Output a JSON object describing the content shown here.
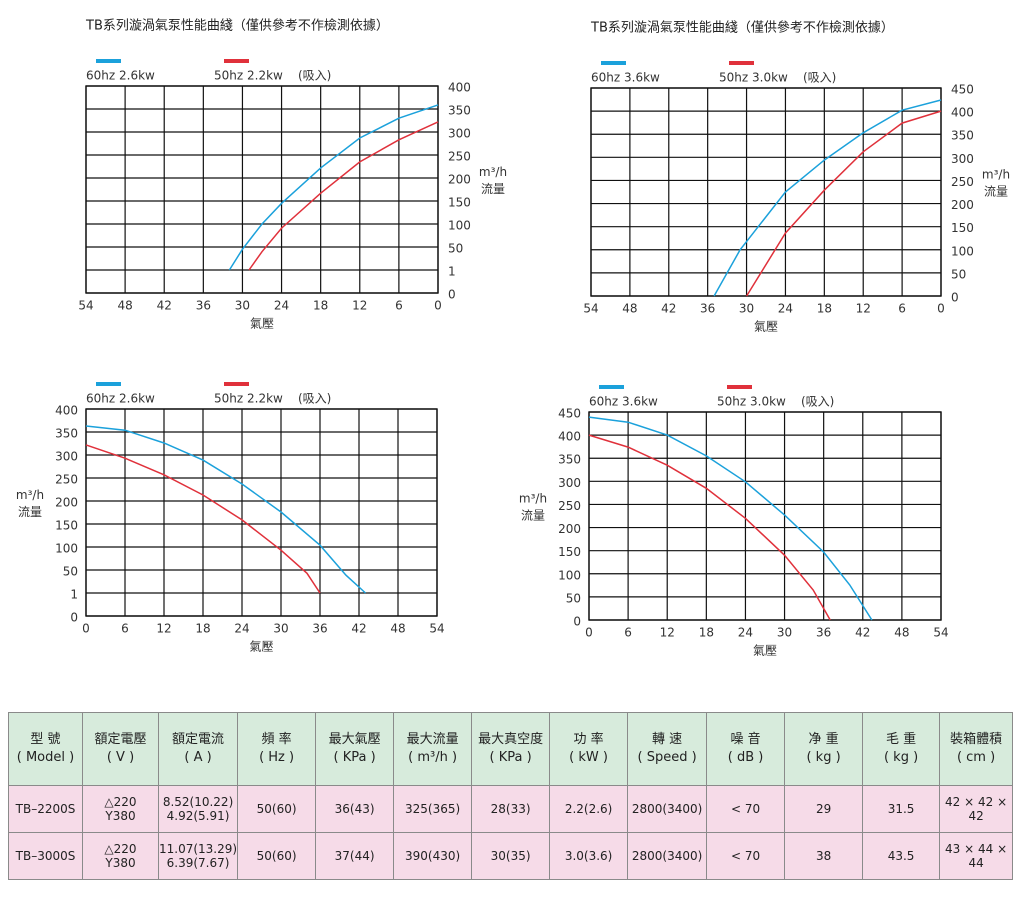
{
  "chart_data": [
    {
      "type": "line",
      "title": "TB系列漩渦氣泵性能曲綫（僅供參考不作檢測依據）",
      "y_axis_side": "right",
      "grid": true,
      "xlim": [
        54,
        0
      ],
      "xticks": [
        54,
        48,
        42,
        36,
        30,
        24,
        18,
        12,
        6,
        0
      ],
      "ylim": [
        0,
        400
      ],
      "yticks": [
        0,
        1,
        50,
        100,
        150,
        200,
        250,
        300,
        350,
        400
      ],
      "x_label": "氣壓",
      "y_label": [
        "m³/h",
        "流量"
      ],
      "annotation": "(吸入)",
      "series": [
        {
          "name": "60hz 2.6kw",
          "color": "#1ba1db",
          "x": [
            32,
            30,
            27,
            24,
            18,
            12,
            6,
            0
          ],
          "values": [
            1,
            45,
            100,
            145,
            222,
            287,
            330,
            359
          ]
        },
        {
          "name": "50hz 2.2kw",
          "color": "#e0313b",
          "x": [
            29,
            27,
            24,
            18,
            12,
            6,
            0
          ],
          "values": [
            1,
            40,
            91,
            167,
            235,
            283,
            322
          ]
        }
      ]
    },
    {
      "type": "line",
      "title": "TB系列漩渦氣泵性能曲綫（僅供參考不作檢測依據）",
      "y_axis_side": "right",
      "grid": true,
      "xlim": [
        54,
        0
      ],
      "xticks": [
        54,
        48,
        42,
        36,
        30,
        24,
        18,
        12,
        6,
        0
      ],
      "ylim": [
        0,
        450
      ],
      "yticks": [
        0,
        50,
        100,
        150,
        200,
        250,
        300,
        350,
        400,
        450
      ],
      "x_label": "氣壓",
      "y_label": [
        "m³/h",
        "流量"
      ],
      "annotation": "(吸入)",
      "series": [
        {
          "name": "60hz 3.6kw",
          "color": "#1ba1db",
          "x": [
            35,
            31,
            24,
            18,
            12,
            6,
            0
          ],
          "values": [
            0,
            100,
            225,
            294,
            353,
            402,
            424
          ]
        },
        {
          "name": "50hz 3.0kw",
          "color": "#e0313b",
          "x": [
            30,
            24,
            18,
            12,
            6,
            0
          ],
          "values": [
            0,
            136,
            229,
            312,
            374,
            400
          ]
        }
      ]
    },
    {
      "type": "line",
      "y_axis_side": "left",
      "grid": true,
      "xlim": [
        0,
        54
      ],
      "xticks": [
        0,
        6,
        12,
        18,
        24,
        30,
        36,
        42,
        48,
        54
      ],
      "ylim": [
        0,
        400
      ],
      "yticks": [
        0,
        1,
        50,
        100,
        150,
        200,
        250,
        300,
        350,
        400
      ],
      "x_label": "氣壓",
      "y_label": [
        "m³/h",
        "流量"
      ],
      "annotation": "(吸入)",
      "series": [
        {
          "name": "60hz 2.6kw",
          "color": "#1ba1db",
          "x": [
            0,
            6,
            12,
            18,
            24,
            30,
            36,
            40,
            43
          ],
          "values": [
            363,
            354,
            326,
            289,
            237,
            176,
            104,
            39,
            1
          ]
        },
        {
          "name": "50hz 2.2kw",
          "color": "#e0313b",
          "x": [
            0,
            6,
            12,
            18,
            24,
            30,
            34,
            36
          ],
          "values": [
            322,
            293,
            257,
            213,
            159,
            93,
            43,
            1
          ]
        }
      ]
    },
    {
      "type": "line",
      "y_axis_side": "left",
      "grid": true,
      "xlim": [
        0,
        54
      ],
      "xticks": [
        0,
        6,
        12,
        18,
        24,
        30,
        36,
        42,
        48,
        54
      ],
      "ylim": [
        0,
        450
      ],
      "yticks": [
        0,
        50,
        100,
        150,
        200,
        250,
        300,
        350,
        400,
        450
      ],
      "x_label": "氣壓",
      "y_label": [
        "m³/h",
        "流量"
      ],
      "annotation": "(吸入)",
      "series": [
        {
          "name": "60hz 3.6kw",
          "color": "#1ba1db",
          "x": [
            0,
            6,
            12,
            18,
            24,
            30,
            36,
            40,
            43.4
          ],
          "values": [
            439,
            428,
            400,
            355,
            299,
            227,
            147,
            76,
            0
          ]
        },
        {
          "name": "50hz 3.0kw",
          "color": "#e0313b",
          "x": [
            0,
            6,
            12,
            18,
            24,
            30,
            34.4,
            37
          ],
          "values": [
            400,
            374,
            335,
            285,
            220,
            140,
            65,
            0
          ]
        }
      ]
    }
  ],
  "table": {
    "header": [
      [
        "型 號",
        "( Model )"
      ],
      [
        "額定電壓",
        "( V )"
      ],
      [
        "額定電流",
        "( A )"
      ],
      [
        "頻 率",
        "( Hz )"
      ],
      [
        "最大氣壓",
        "( KPa )"
      ],
      [
        "最大流量",
        "( m³/h )"
      ],
      [
        "最大真空度",
        "( KPa )"
      ],
      [
        "功 率",
        "( kW )"
      ],
      [
        "轉 速",
        "( Speed )"
      ],
      [
        "噪 音",
        "( dB )"
      ],
      [
        "净 重",
        "( kg )"
      ],
      [
        "毛 重",
        "( kg )"
      ],
      [
        "裝箱體積",
        "( cm )"
      ]
    ],
    "rows": [
      [
        "TB–2200S",
        [
          "△220",
          "Y380"
        ],
        [
          "8.52(10.22)",
          "4.92(5.91)"
        ],
        "50(60)",
        "36(43)",
        "325(365)",
        "28(33)",
        "2.2(2.6)",
        "2800(3400)",
        "< 70",
        "29",
        "31.5",
        "42 × 42 × 42"
      ],
      [
        "TB–3000S",
        [
          "△220",
          "Y380"
        ],
        [
          "11.07(13.29)",
          "6.39(7.67)"
        ],
        "50(60)",
        "37(44)",
        "390(430)",
        "30(35)",
        "3.0(3.6)",
        "2800(3400)",
        "< 70",
        "38",
        "43.5",
        "43 × 44 × 44"
      ]
    ]
  }
}
